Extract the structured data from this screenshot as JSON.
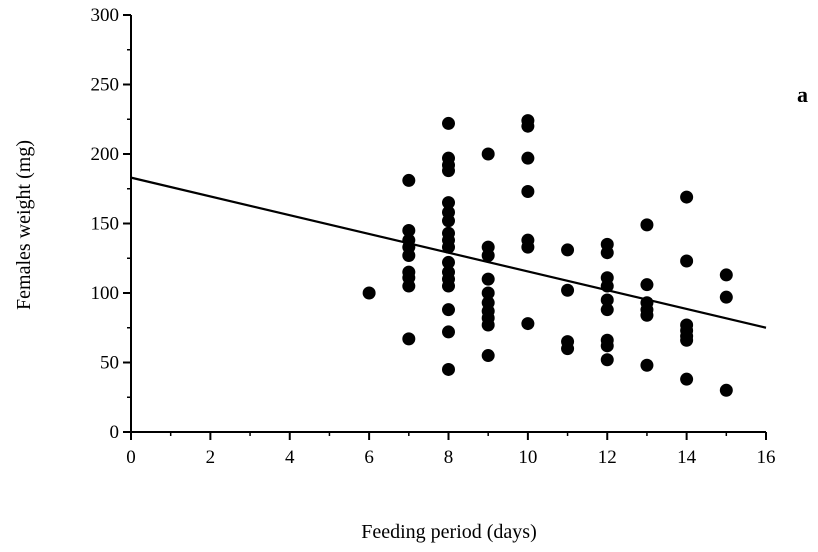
{
  "chart_data": {
    "type": "scatter",
    "title": "",
    "panel_label": "a",
    "xlabel": "Feeding period (days)",
    "ylabel": "Females weight (mg)",
    "xlim": [
      0,
      16
    ],
    "ylim": [
      0,
      300
    ],
    "xticks": [
      0,
      2,
      4,
      6,
      8,
      10,
      12,
      14,
      16
    ],
    "yticks": [
      0,
      50,
      100,
      150,
      200,
      250,
      300
    ],
    "grid": false,
    "legend": "none",
    "colors": {
      "points": "#000000",
      "line": "#000000",
      "axes": "#000000"
    },
    "points": [
      [
        6,
        100
      ],
      [
        7,
        181
      ],
      [
        7,
        145
      ],
      [
        7,
        138
      ],
      [
        7,
        133
      ],
      [
        7,
        127
      ],
      [
        7,
        115
      ],
      [
        7,
        111
      ],
      [
        7,
        105
      ],
      [
        7,
        67
      ],
      [
        8,
        222
      ],
      [
        8,
        197
      ],
      [
        8,
        192
      ],
      [
        8,
        188
      ],
      [
        8,
        165
      ],
      [
        8,
        158
      ],
      [
        8,
        152
      ],
      [
        8,
        143
      ],
      [
        8,
        138
      ],
      [
        8,
        133
      ],
      [
        8,
        122
      ],
      [
        8,
        115
      ],
      [
        8,
        110
      ],
      [
        8,
        105
      ],
      [
        8,
        88
      ],
      [
        8,
        72
      ],
      [
        8,
        45
      ],
      [
        9,
        200
      ],
      [
        9,
        133
      ],
      [
        9,
        127
      ],
      [
        9,
        110
      ],
      [
        9,
        100
      ],
      [
        9,
        93
      ],
      [
        9,
        87
      ],
      [
        9,
        82
      ],
      [
        9,
        77
      ],
      [
        9,
        55
      ],
      [
        10,
        224
      ],
      [
        10,
        220
      ],
      [
        10,
        197
      ],
      [
        10,
        173
      ],
      [
        10,
        138
      ],
      [
        10,
        133
      ],
      [
        10,
        78
      ],
      [
        11,
        131
      ],
      [
        11,
        102
      ],
      [
        11,
        65
      ],
      [
        11,
        60
      ],
      [
        12,
        135
      ],
      [
        12,
        129
      ],
      [
        12,
        111
      ],
      [
        12,
        105
      ],
      [
        12,
        95
      ],
      [
        12,
        88
      ],
      [
        12,
        66
      ],
      [
        12,
        62
      ],
      [
        12,
        52
      ],
      [
        13,
        149
      ],
      [
        13,
        106
      ],
      [
        13,
        93
      ],
      [
        13,
        88
      ],
      [
        13,
        84
      ],
      [
        13,
        48
      ],
      [
        14,
        169
      ],
      [
        14,
        123
      ],
      [
        14,
        77
      ],
      [
        14,
        73
      ],
      [
        14,
        69
      ],
      [
        14,
        66
      ],
      [
        14,
        38
      ],
      [
        15,
        113
      ],
      [
        15,
        97
      ],
      [
        15,
        30
      ]
    ],
    "regression_line": {
      "x": [
        0,
        16
      ],
      "y": [
        183,
        75
      ]
    }
  }
}
